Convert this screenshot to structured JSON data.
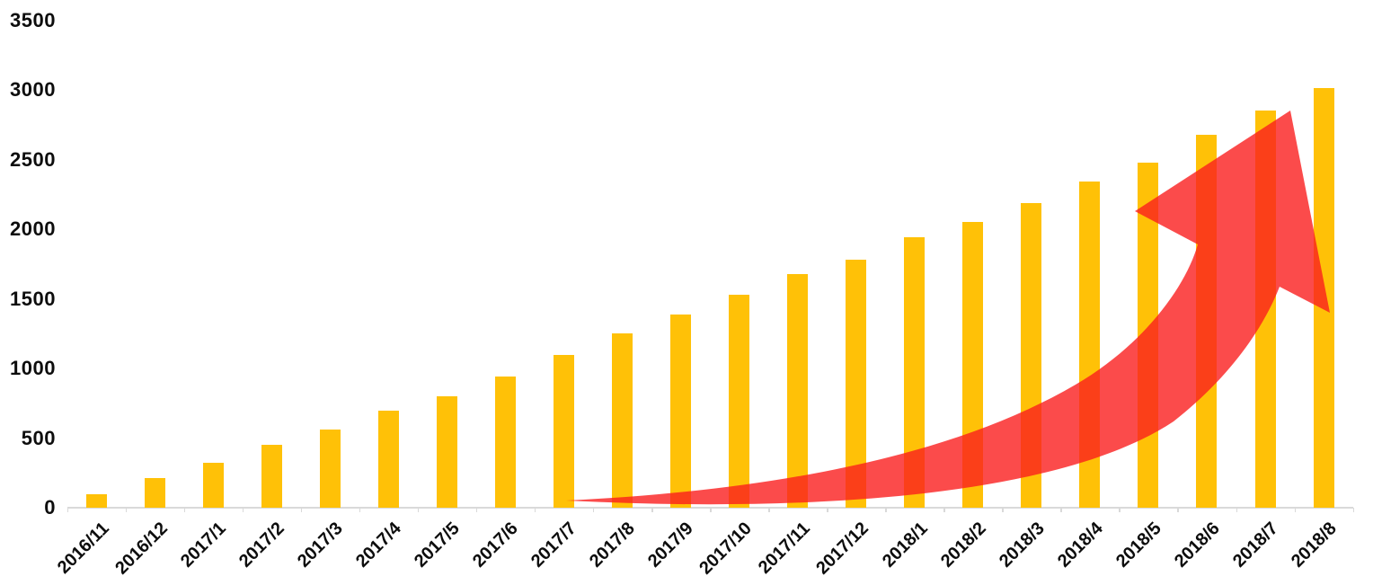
{
  "chart_data": {
    "type": "bar",
    "title": "",
    "xlabel": "",
    "ylabel": "",
    "categories": [
      "2016/11",
      "2016/12",
      "2017/1",
      "2017/2",
      "2017/3",
      "2017/4",
      "2017/5",
      "2017/6",
      "2017/7",
      "2017/8",
      "2017/9",
      "2017/10",
      "2017/11",
      "2017/12",
      "2018/1",
      "2018/2",
      "2018/3",
      "2018/4",
      "2018/5",
      "2018/6",
      "2018/7",
      "2018/8"
    ],
    "values": [
      100,
      210,
      320,
      450,
      560,
      700,
      800,
      940,
      1100,
      1250,
      1390,
      1530,
      1680,
      1780,
      1940,
      2050,
      2190,
      2340,
      2480,
      2680,
      2850,
      3010
    ],
    "y_ticks": [
      0,
      500,
      1000,
      1500,
      2000,
      2500,
      3000,
      3500
    ],
    "ylim": [
      0,
      3500
    ],
    "grid": "off",
    "legend": "none",
    "colors": {
      "bar": "#FFC107",
      "axis": "#D9D9D9",
      "label": "#0D0D0D",
      "arrow": "#FA1E1E"
    },
    "annotation": {
      "name": "growth-arrow",
      "shape": "curved swoosh arrow rising from 2017/7 baseline to upper right",
      "color": "#FA1E1E",
      "opacity": 0.8
    }
  }
}
